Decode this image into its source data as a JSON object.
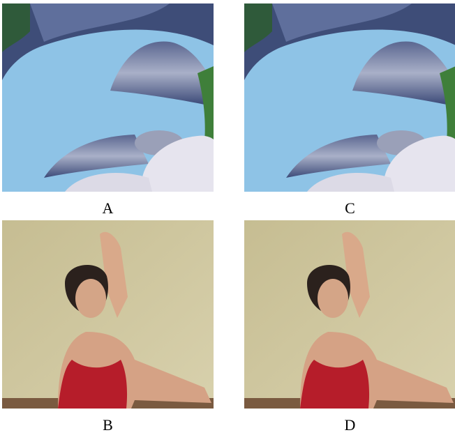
{
  "panels": [
    {
      "label": "A"
    },
    {
      "label": "C"
    },
    {
      "label": "B"
    },
    {
      "label": "D"
    }
  ]
}
